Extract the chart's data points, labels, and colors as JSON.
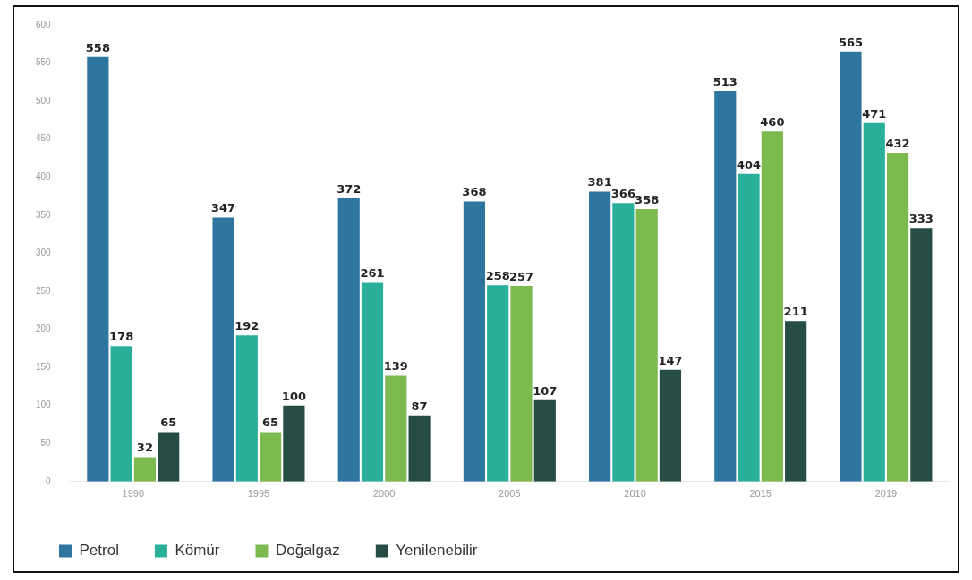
{
  "chart_data": {
    "type": "bar",
    "categories": [
      "1990",
      "1995",
      "2000",
      "2005",
      "2010",
      "2015",
      "2019"
    ],
    "series": [
      {
        "name": "Petrol",
        "color": "#2e75a0",
        "values": [
          558,
          347,
          372,
          368,
          381,
          513,
          565
        ]
      },
      {
        "name": "Kömür",
        "color": "#2ab09a",
        "values": [
          178,
          192,
          261,
          258,
          366,
          404,
          471
        ]
      },
      {
        "name": "Doğalgaz",
        "color": "#7cb94e",
        "values": [
          32,
          65,
          139,
          257,
          358,
          460,
          432
        ]
      },
      {
        "name": "Yenilenebilir",
        "color": "#264d45",
        "values": [
          65,
          100,
          87,
          107,
          147,
          211,
          333
        ]
      }
    ],
    "ylim": [
      0,
      600
    ],
    "yticks": [
      0,
      50,
      100,
      150,
      200,
      250,
      300,
      350,
      400,
      450,
      500,
      550,
      600
    ],
    "grid": false,
    "legend": "bottom left",
    "data_labels": true
  }
}
